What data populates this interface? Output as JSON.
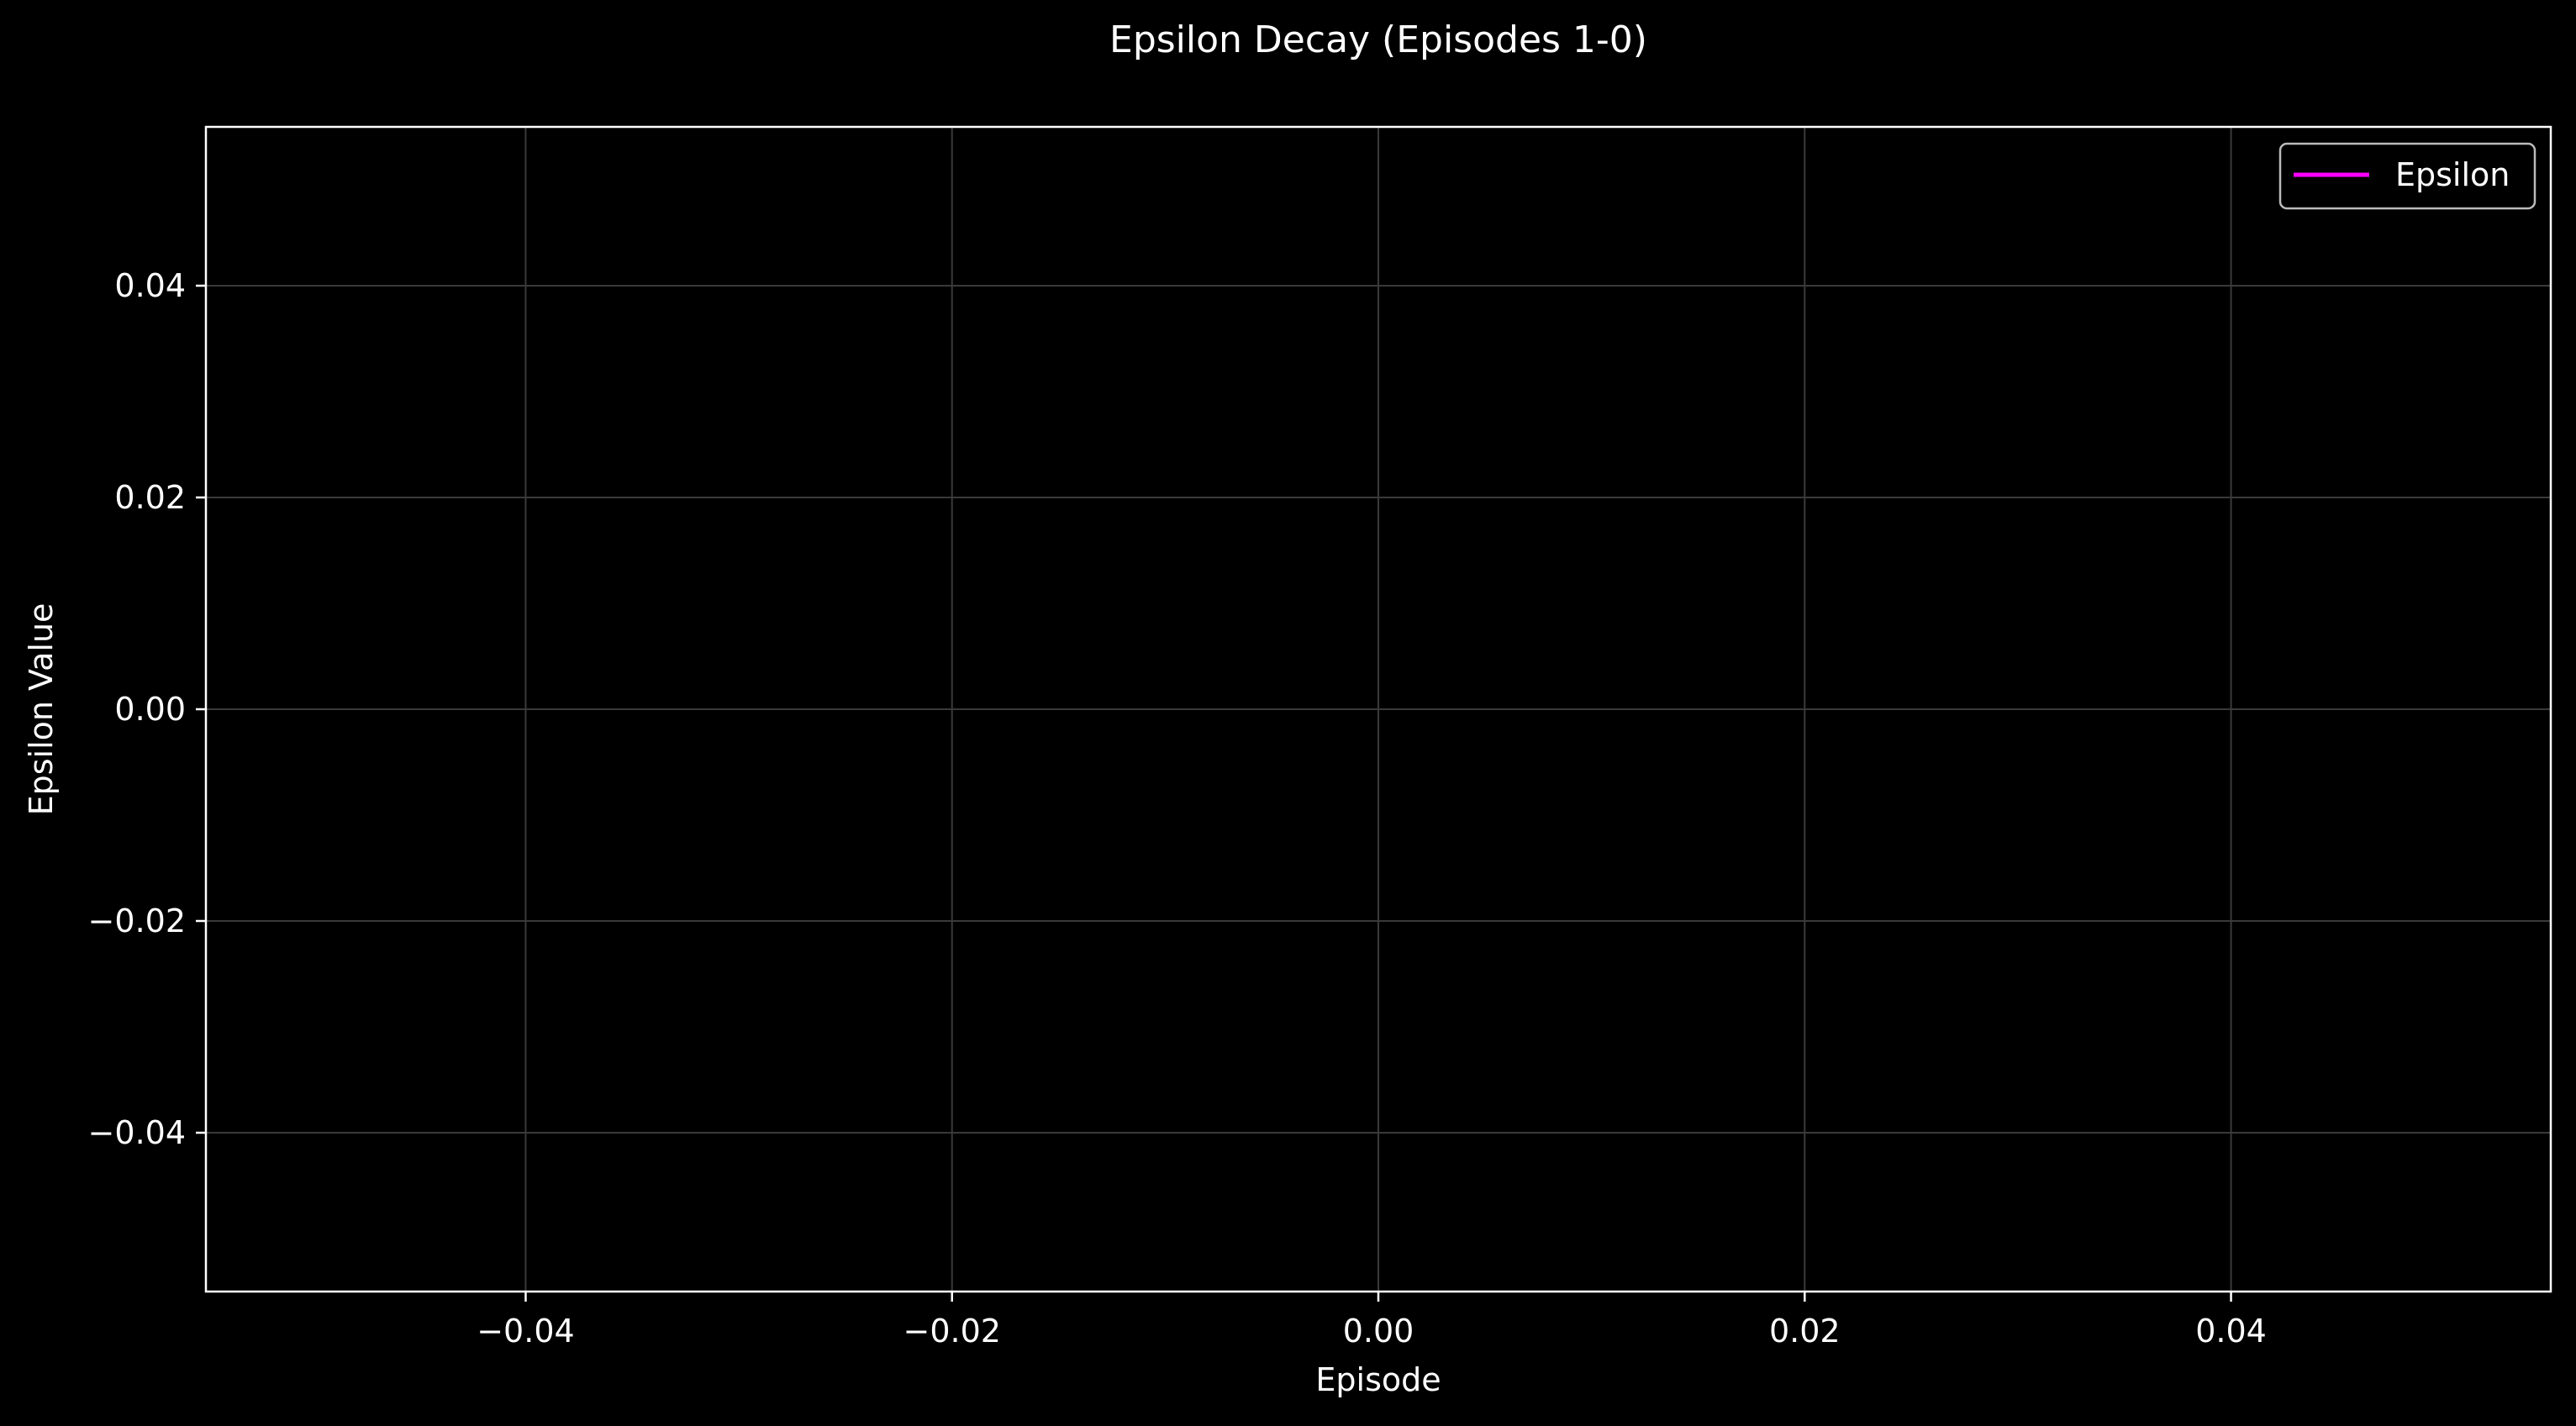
{
  "chart_data": {
    "type": "line",
    "title": "Epsilon Decay (Episodes 1-0)",
    "xlabel": "Episode",
    "ylabel": "Epsilon Value",
    "xlim": [
      -0.055,
      0.055
    ],
    "ylim": [
      -0.055,
      0.055
    ],
    "xticks": [
      -0.04,
      -0.02,
      0.0,
      0.02,
      0.04
    ],
    "yticks": [
      -0.04,
      -0.02,
      0.0,
      0.02,
      0.04
    ],
    "xtick_labels": [
      "−0.04",
      "−0.02",
      "0.00",
      "0.02",
      "0.04"
    ],
    "ytick_labels": [
      "−0.04",
      "−0.02",
      "0.00",
      "0.02",
      "0.04"
    ],
    "grid": true,
    "legend_position": "top-right",
    "series": [
      {
        "name": "Epsilon",
        "x": [],
        "y": [],
        "color": "#ff00ff"
      }
    ]
  },
  "colors": {
    "background": "#000000",
    "axes": "#ffffff",
    "grid": "#3a3a3a",
    "text": "#ffffff",
    "legend_border": "#bbbbbb"
  }
}
